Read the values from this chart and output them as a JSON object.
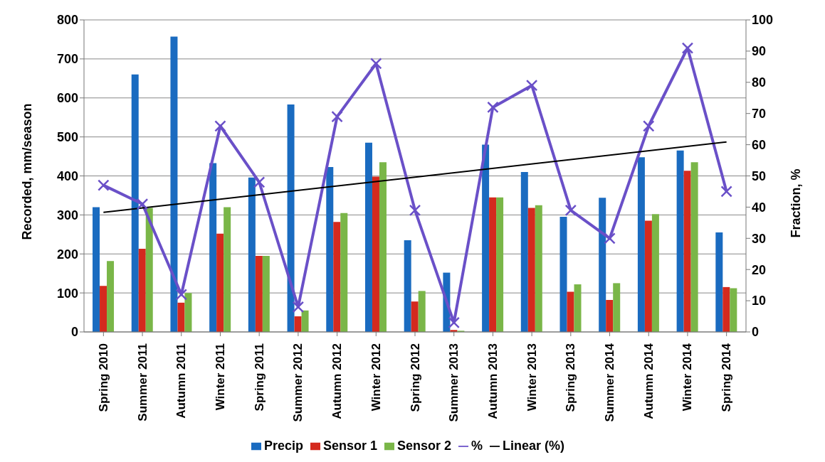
{
  "chart_data": {
    "type": "bar",
    "ylabel": "Recorded, mm/season",
    "y2label": "Fraction, %",
    "categories": [
      "Spring 2010",
      "Summer 2011",
      "Autumn 2011",
      "Winter 2011",
      "Spring 2011",
      "Summer 2012",
      "Autumn 2012",
      "Winter 2012",
      "Spring 2012",
      "Summer 2013",
      "Autumn 2013",
      "Winter 2013",
      "Spring 2013",
      "Summer 2014",
      "Autumn 2014",
      "Winter 2014",
      "Spring 2014"
    ],
    "series": [
      {
        "name": "Precip",
        "color": "#1a6bc0",
        "values": [
          320,
          660,
          757,
          433,
          396,
          583,
          423,
          485,
          235,
          152,
          480,
          410,
          295,
          344,
          448,
          465,
          255
        ]
      },
      {
        "name": "Sensor 1",
        "color": "#d42a1e",
        "values": [
          118,
          213,
          75,
          252,
          195,
          40,
          282,
          398,
          78,
          5,
          345,
          318,
          103,
          82,
          285,
          413,
          115
        ]
      },
      {
        "name": "Sensor 2",
        "color": "#7ab648",
        "values": [
          182,
          318,
          100,
          320,
          195,
          55,
          305,
          435,
          105,
          3,
          345,
          325,
          122,
          125,
          302,
          435,
          112
        ]
      },
      {
        "name": "%",
        "type": "line",
        "axis": "y2",
        "marker": "cross",
        "color": "#6a50c8",
        "values": [
          47,
          41,
          12,
          66,
          48,
          8,
          69,
          86,
          39,
          3,
          72,
          79,
          39,
          30,
          66,
          91,
          45
        ]
      },
      {
        "name": "Linear (%)",
        "type": "line",
        "axis": "y2",
        "marker": "none",
        "color": "#000000",
        "values": [
          38.3,
          null,
          null,
          null,
          null,
          null,
          null,
          null,
          null,
          null,
          null,
          null,
          null,
          null,
          null,
          null,
          60.9
        ]
      }
    ],
    "ylim": [
      0,
      800
    ],
    "yticks": [
      0,
      100,
      200,
      300,
      400,
      500,
      600,
      700,
      800
    ],
    "y2lim": [
      0,
      100
    ],
    "y2ticks": [
      0,
      10,
      20,
      30,
      40,
      50,
      60,
      70,
      80,
      90,
      100
    ],
    "grid": "y",
    "legend": "bottom"
  }
}
